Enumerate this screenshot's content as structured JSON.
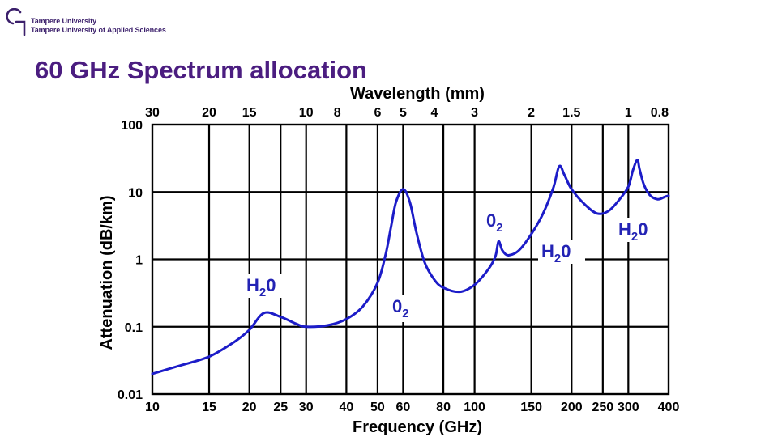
{
  "brand": {
    "line1": "Tampere University",
    "line2": "Tampere University of Applied Sciences",
    "colors": {
      "primary": "#3b1f6b",
      "title": "#4b1d80"
    }
  },
  "slide": {
    "title": "60 GHz Spectrum allocation"
  },
  "chart_data": {
    "type": "line",
    "xlabel": "Frequency (GHz)",
    "ylabel": "Attenuation (dB/km)",
    "top_axis_label": "Wavelength (mm)",
    "x_scale": "log",
    "y_scale": "log",
    "xlim": [
      10,
      400
    ],
    "ylim": [
      0.01,
      100
    ],
    "grid": true,
    "line_color": "#1c1cc8",
    "x_ticks": [
      {
        "value": 10,
        "label": "10"
      },
      {
        "value": 15,
        "label": "15"
      },
      {
        "value": 20,
        "label": "20"
      },
      {
        "value": 25,
        "label": "25"
      },
      {
        "value": 30,
        "label": "30"
      },
      {
        "value": 40,
        "label": "40"
      },
      {
        "value": 50,
        "label": "50"
      },
      {
        "value": 60,
        "label": "60"
      },
      {
        "value": 80,
        "label": "80"
      },
      {
        "value": 100,
        "label": "100"
      },
      {
        "value": 150,
        "label": "150"
      },
      {
        "value": 200,
        "label": "200"
      },
      {
        "value": 250,
        "label": "250"
      },
      {
        "value": 300,
        "label": "300"
      },
      {
        "value": 400,
        "label": "400"
      }
    ],
    "wavelength_ticks": [
      {
        "mm": 30,
        "label": "30"
      },
      {
        "mm": 20,
        "label": "20"
      },
      {
        "mm": 15,
        "label": "15"
      },
      {
        "mm": 10,
        "label": "10"
      },
      {
        "mm": 8,
        "label": "8"
      },
      {
        "mm": 6,
        "label": "6"
      },
      {
        "mm": 5,
        "label": "5"
      },
      {
        "mm": 4,
        "label": "4"
      },
      {
        "mm": 3,
        "label": "3"
      },
      {
        "mm": 2,
        "label": "2"
      },
      {
        "mm": 1.5,
        "label": "1.5"
      },
      {
        "mm": 1,
        "label": "1"
      },
      {
        "mm": 0.8,
        "label": "0.8"
      }
    ],
    "y_ticks": [
      {
        "value": 100,
        "label": "100"
      },
      {
        "value": 10,
        "label": "10"
      },
      {
        "value": 1,
        "label": "1"
      },
      {
        "value": 0.1,
        "label": "0.1"
      },
      {
        "value": 0.01,
        "label": "0.01"
      }
    ],
    "series": [
      {
        "x": [
          10,
          12,
          15,
          18,
          20,
          22.2,
          25,
          28,
          30,
          35,
          40,
          45,
          50,
          53,
          55,
          57,
          60,
          63,
          66,
          70,
          75,
          80,
          90,
          100,
          110,
          116,
          118.7,
          122,
          128,
          140,
          160,
          175,
          183,
          190,
          200,
          220,
          240,
          260,
          280,
          300,
          310,
          320,
          325,
          335,
          350,
          370,
          390,
          400
        ],
        "y": [
          0.02,
          0.026,
          0.036,
          0.06,
          0.09,
          0.16,
          0.14,
          0.11,
          0.1,
          0.105,
          0.13,
          0.2,
          0.45,
          1.2,
          3.0,
          7.0,
          11.0,
          7.0,
          2.5,
          0.9,
          0.5,
          0.38,
          0.33,
          0.42,
          0.7,
          1.1,
          1.85,
          1.35,
          1.15,
          1.5,
          4.0,
          11.0,
          24.0,
          18.0,
          11.0,
          6.5,
          4.8,
          5.2,
          7.5,
          12.0,
          21.0,
          30.0,
          22.0,
          13.0,
          9.0,
          7.8,
          8.5,
          8.8
        ]
      }
    ],
    "annotations": [
      {
        "id": "h2o-low",
        "base": "H",
        "sub": "2",
        "tail": "0"
      },
      {
        "id": "o2-low",
        "base": "0",
        "sub": "2"
      },
      {
        "id": "o2-high",
        "base": "0",
        "sub": "2"
      },
      {
        "id": "h2o-mid",
        "base": "H",
        "sub": "2",
        "tail": "0"
      },
      {
        "id": "h2o-high",
        "base": "H",
        "sub": "2",
        "tail": "0"
      }
    ]
  }
}
